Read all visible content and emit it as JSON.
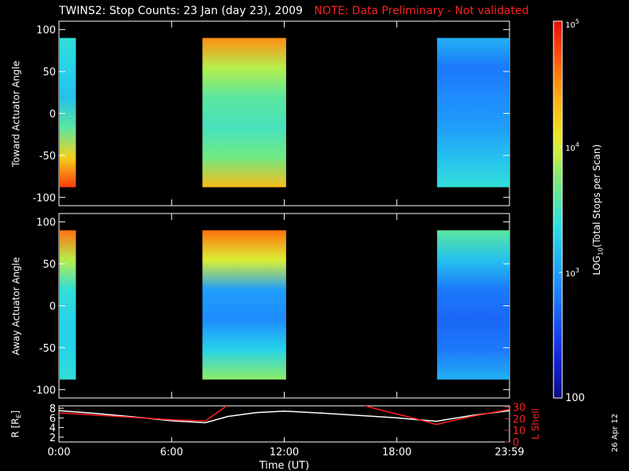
{
  "header": {
    "title": "TWINS2: Stop Counts: 23 Jan (day  23), 2009",
    "note": "NOTE: Data Preliminary - Not validated",
    "note_color": "#ff2020"
  },
  "plot_date": "26 Apr 12",
  "chart_data": [
    {
      "type": "heatmap",
      "panel": "toward",
      "ylabel": "Toward Actuator Angle",
      "ylim": [
        -110,
        110
      ],
      "yticks": [
        "100",
        "50",
        "0",
        "-50",
        "-100"
      ],
      "ytick_values": [
        100,
        50,
        0,
        -50,
        -100
      ],
      "x_range_hours": [
        0,
        24
      ],
      "data_blocks_hours": [
        [
          0,
          0.9
        ],
        [
          7.6,
          12.1
        ],
        [
          20.1,
          24
        ]
      ],
      "angle_range": [
        -88,
        90
      ],
      "log_counts_grid": [
        [
          3.4,
          3.3,
          3.2,
          3.6,
          4.2,
          4.8
        ],
        [
          4.5,
          3.9,
          3.6,
          3.5,
          3.7,
          4.3
        ],
        [
          3.1,
          2.8,
          2.9,
          3.0,
          3.2,
          3.4
        ]
      ]
    },
    {
      "type": "heatmap",
      "panel": "away",
      "ylabel": "Away Actuator Angle",
      "ylim": [
        -110,
        110
      ],
      "yticks": [
        "100",
        "50",
        "0",
        "-50",
        "-100"
      ],
      "ytick_values": [
        100,
        50,
        0,
        -50,
        -100
      ],
      "x_range_hours": [
        0,
        24
      ],
      "data_blocks_hours": [
        [
          0,
          0.9
        ],
        [
          7.6,
          12.1
        ],
        [
          20.1,
          24
        ]
      ],
      "angle_range": [
        -88,
        90
      ],
      "log_counts_grid": [
        [
          4.6,
          3.9,
          3.4,
          3.3,
          3.3,
          3.4
        ],
        [
          4.6,
          4.0,
          3.0,
          2.9,
          3.3,
          3.8
        ],
        [
          3.6,
          3.2,
          2.8,
          2.7,
          2.8,
          3.1
        ]
      ]
    },
    {
      "type": "line",
      "panel": "ephemeris",
      "ylabel_left": "R [R",
      "ylabel_left_sub": "E",
      "ylabel_left_close": "]",
      "ylabel_right": "L Shell",
      "yticks_left": [
        "8",
        "6",
        "4",
        "2"
      ],
      "yticks_left_values": [
        8,
        6,
        4,
        2
      ],
      "ylim_left": [
        1,
        8.5
      ],
      "yticks_right": [
        "30",
        "20",
        "10",
        "0"
      ],
      "yticks_right_values": [
        30,
        20,
        10,
        0
      ],
      "ylim_right": [
        0,
        31
      ],
      "xlabel": "Time (UT)",
      "xticks": [
        "0:00",
        "6:00",
        "12:00",
        "18:00",
        "23:59"
      ],
      "xtick_values": [
        0,
        6,
        12,
        18,
        24
      ],
      "series": [
        {
          "axis": "left",
          "color": "#ffffff",
          "x": [
            0,
            2,
            4,
            6,
            7.8,
            9,
            10.5,
            12,
            14,
            16,
            18,
            20.1,
            22,
            24
          ],
          "y": [
            7.5,
            6.9,
            6.2,
            5.4,
            5.0,
            6.3,
            7.1,
            7.4,
            7.0,
            6.5,
            6.0,
            5.3,
            6.5,
            7.5
          ]
        },
        {
          "axis": "right",
          "color": "#ff2020",
          "x": [
            0,
            2,
            4,
            6,
            7.8,
            8.6,
            9.0
          ],
          "y": [
            25,
            23,
            21,
            19,
            18,
            27,
            32
          ]
        },
        {
          "axis": "right",
          "color": "#ff2020",
          "x": [
            16.1,
            17,
            18,
            19,
            20.1,
            22,
            24
          ],
          "y": [
            32,
            28,
            24,
            20,
            15,
            22,
            28
          ]
        }
      ]
    }
  ],
  "colorbar": {
    "label": "LOG",
    "label_sub": "10",
    "label_rest": "(Total Stops per Scan)",
    "ticks": [
      "10",
      "10",
      "10",
      "100"
    ],
    "tick_exps": [
      "5",
      "4",
      "3",
      ""
    ],
    "tick_values_log": [
      5,
      4,
      3,
      2
    ],
    "range_log": [
      2,
      5
    ]
  }
}
